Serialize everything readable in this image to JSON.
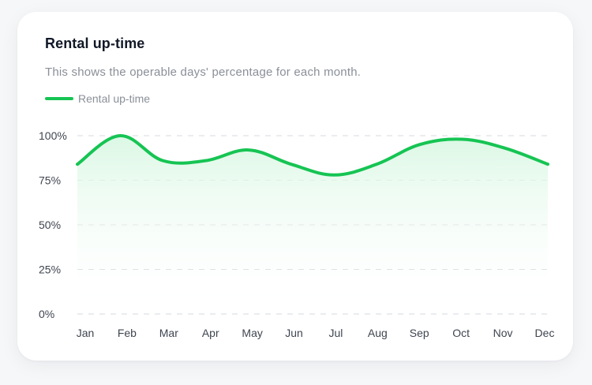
{
  "card": {
    "title": "Rental up-time",
    "subtitle": "This shows the operable days' percentage for each month."
  },
  "colors": {
    "line": "#16c453",
    "fill_top": "#d9f7e3",
    "grid": "#d7dadf"
  },
  "chart_data": {
    "type": "area",
    "categories": [
      "Jan",
      "Feb",
      "Mar",
      "Apr",
      "May",
      "Jun",
      "Jul",
      "Aug",
      "Sep",
      "Oct",
      "Nov",
      "Dec"
    ],
    "series": [
      {
        "name": "Rental up-time",
        "values": [
          84,
          100,
          86,
          86,
          92,
          84,
          78,
          84,
          95,
          98,
          93,
          84
        ]
      }
    ],
    "yticks": [
      "0%",
      "25%",
      "50%",
      "75%",
      "100%"
    ],
    "ylim": [
      0,
      100
    ],
    "grid": true,
    "legend": "top-left"
  }
}
